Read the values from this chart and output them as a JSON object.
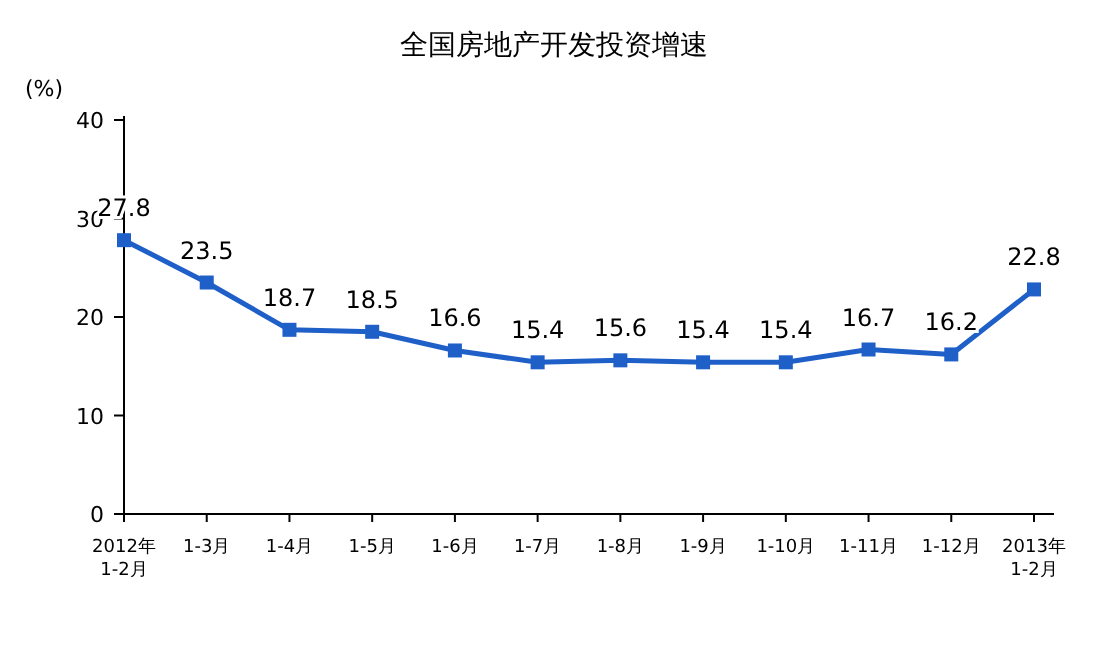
{
  "chart_data": {
    "type": "line",
    "title": "全国房地产开发投资增速",
    "ylabel": "(%)",
    "categories": [
      "2012年\n1-2月",
      "1-3月",
      "1-4月",
      "1-5月",
      "1-6月",
      "1-7月",
      "1-8月",
      "1-9月",
      "1-10月",
      "1-11月",
      "1-12月",
      "2013年\n1-2月"
    ],
    "series": [
      {
        "color": "#1f5fc8",
        "values": [
          27.8,
          23.5,
          18.7,
          18.5,
          16.6,
          15.4,
          15.6,
          15.4,
          15.4,
          16.7,
          16.2,
          22.8
        ]
      }
    ],
    "ylim": [
      0,
      40
    ],
    "yticks": [
      0,
      10,
      20,
      30,
      40
    ],
    "grid": false,
    "marker": "square",
    "line_style": "solid",
    "data_labels": true
  }
}
